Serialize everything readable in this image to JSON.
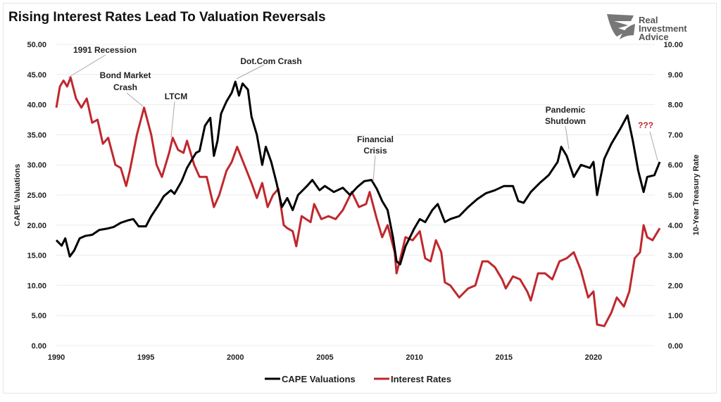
{
  "chart_data": {
    "type": "line",
    "title": "Rising Interest Rates Lead To Valuation Reversals",
    "ylabel": "CAPE Valuations",
    "y2label": "10-Year Treasury Rate",
    "xlim": [
      1990,
      2024
    ],
    "ylim": [
      0,
      50
    ],
    "y2lim": [
      0,
      10
    ],
    "x_ticks": [
      "1990",
      "1995",
      "2000",
      "2005",
      "2010",
      "2015",
      "2020"
    ],
    "y_ticks": [
      "0.00",
      "5.00",
      "10.00",
      "15.00",
      "20.00",
      "25.00",
      "30.00",
      "35.00",
      "40.00",
      "45.00",
      "50.00"
    ],
    "y2_ticks": [
      "0.00",
      "1.00",
      "2.00",
      "3.00",
      "4.00",
      "5.00",
      "6.00",
      "7.00",
      "8.00",
      "9.00",
      "10.00"
    ],
    "grid": true,
    "legend_placement": "bottom",
    "series": [
      {
        "name": "CAPE Valuations",
        "axis": "left",
        "color": "#000000",
        "points": [
          [
            1990,
            17.5
          ],
          [
            1990.3,
            16.6
          ],
          [
            1990.5,
            17.8
          ],
          [
            1990.75,
            14.8
          ],
          [
            1991,
            15.8
          ],
          [
            1991.3,
            17.8
          ],
          [
            1991.6,
            18.2
          ],
          [
            1992,
            18.4
          ],
          [
            1992.4,
            19.2
          ],
          [
            1992.8,
            19.4
          ],
          [
            1993.2,
            19.7
          ],
          [
            1993.6,
            20.4
          ],
          [
            1994,
            20.8
          ],
          [
            1994.3,
            21.0
          ],
          [
            1994.6,
            19.8
          ],
          [
            1995,
            19.8
          ],
          [
            1995.3,
            21.5
          ],
          [
            1995.7,
            23.3
          ],
          [
            1996,
            24.8
          ],
          [
            1996.4,
            25.8
          ],
          [
            1996.6,
            25.2
          ],
          [
            1997,
            27.3
          ],
          [
            1997.3,
            29.5
          ],
          [
            1997.5,
            30.5
          ],
          [
            1997.8,
            32
          ],
          [
            1998,
            32.3
          ],
          [
            1998.3,
            36.5
          ],
          [
            1998.6,
            37.8
          ],
          [
            1998.8,
            31.5
          ],
          [
            1999,
            34
          ],
          [
            1999.2,
            38.5
          ],
          [
            1999.5,
            40.5
          ],
          [
            1999.8,
            42
          ],
          [
            2000,
            43.8
          ],
          [
            2000.2,
            41.5
          ],
          [
            2000.4,
            43.5
          ],
          [
            2000.7,
            42.5
          ],
          [
            2000.9,
            38
          ],
          [
            2001.2,
            35
          ],
          [
            2001.5,
            30
          ],
          [
            2001.7,
            33
          ],
          [
            2002,
            30.5
          ],
          [
            2002.3,
            27
          ],
          [
            2002.6,
            23
          ],
          [
            2002.9,
            24.5
          ],
          [
            2003.2,
            22.5
          ],
          [
            2003.5,
            25
          ],
          [
            2004,
            26.5
          ],
          [
            2004.3,
            27.5
          ],
          [
            2004.7,
            25.8
          ],
          [
            2005,
            26.5
          ],
          [
            2005.5,
            25.5
          ],
          [
            2006,
            26.2
          ],
          [
            2006.4,
            25
          ],
          [
            2006.8,
            26.3
          ],
          [
            2007.2,
            27.3
          ],
          [
            2007.6,
            27.5
          ],
          [
            2007.9,
            26
          ],
          [
            2008.2,
            24
          ],
          [
            2008.5,
            22.5
          ],
          [
            2008.8,
            18
          ],
          [
            2009,
            14
          ],
          [
            2009.2,
            13.5
          ],
          [
            2009.5,
            16.5
          ],
          [
            2010,
            19.5
          ],
          [
            2010.3,
            21
          ],
          [
            2010.6,
            20.5
          ],
          [
            2011,
            22.5
          ],
          [
            2011.3,
            23.5
          ],
          [
            2011.7,
            20.5
          ],
          [
            2012,
            21
          ],
          [
            2012.5,
            21.5
          ],
          [
            2013,
            23
          ],
          [
            2013.5,
            24.3
          ],
          [
            2014,
            25.3
          ],
          [
            2014.5,
            25.8
          ],
          [
            2015,
            26.5
          ],
          [
            2015.5,
            26.5
          ],
          [
            2015.8,
            24
          ],
          [
            2016.1,
            23.7
          ],
          [
            2016.5,
            25.5
          ],
          [
            2017,
            27
          ],
          [
            2017.5,
            28.3
          ],
          [
            2018,
            30.5
          ],
          [
            2018.2,
            33
          ],
          [
            2018.5,
            31.5
          ],
          [
            2018.9,
            28
          ],
          [
            2019.3,
            30
          ],
          [
            2019.8,
            29.5
          ],
          [
            2020,
            30.5
          ],
          [
            2020.2,
            25
          ],
          [
            2020.6,
            31
          ],
          [
            2021,
            33.5
          ],
          [
            2021.5,
            36
          ],
          [
            2021.9,
            38.2
          ],
          [
            2022.2,
            34
          ],
          [
            2022.5,
            29
          ],
          [
            2022.8,
            25.5
          ],
          [
            2023,
            28
          ],
          [
            2023.4,
            28.3
          ],
          [
            2023.7,
            30.5
          ]
        ]
      },
      {
        "name": "Interest Rates",
        "axis": "right",
        "color": "#c0272d",
        "points": [
          [
            1990,
            7.9
          ],
          [
            1990.2,
            8.6
          ],
          [
            1990.4,
            8.8
          ],
          [
            1990.6,
            8.6
          ],
          [
            1990.8,
            8.9
          ],
          [
            1991.1,
            8.2
          ],
          [
            1991.4,
            7.9
          ],
          [
            1991.7,
            8.2
          ],
          [
            1992,
            7.4
          ],
          [
            1992.3,
            7.5
          ],
          [
            1992.6,
            6.7
          ],
          [
            1992.9,
            6.9
          ],
          [
            1993.3,
            6.0
          ],
          [
            1993.6,
            5.9
          ],
          [
            1993.9,
            5.3
          ],
          [
            1994.1,
            5.8
          ],
          [
            1994.5,
            7.0
          ],
          [
            1994.9,
            7.9
          ],
          [
            1995.3,
            7.0
          ],
          [
            1995.6,
            6.0
          ],
          [
            1995.9,
            5.6
          ],
          [
            1996.3,
            6.4
          ],
          [
            1996.5,
            6.9
          ],
          [
            1996.8,
            6.5
          ],
          [
            1997.1,
            6.4
          ],
          [
            1997.3,
            6.8
          ],
          [
            1997.7,
            6.0
          ],
          [
            1998,
            5.6
          ],
          [
            1998.4,
            5.6
          ],
          [
            1998.8,
            4.6
          ],
          [
            1999.1,
            5.0
          ],
          [
            1999.5,
            5.8
          ],
          [
            1999.8,
            6.1
          ],
          [
            2000.1,
            6.6
          ],
          [
            2000.5,
            6.0
          ],
          [
            2000.9,
            5.4
          ],
          [
            2001.2,
            4.9
          ],
          [
            2001.5,
            5.4
          ],
          [
            2001.8,
            4.6
          ],
          [
            2002.1,
            5.0
          ],
          [
            2002.4,
            5.2
          ],
          [
            2002.7,
            4.0
          ],
          [
            2002.9,
            3.9
          ],
          [
            2003.2,
            3.8
          ],
          [
            2003.4,
            3.3
          ],
          [
            2003.7,
            4.3
          ],
          [
            2004.2,
            4.1
          ],
          [
            2004.4,
            4.7
          ],
          [
            2004.8,
            4.2
          ],
          [
            2005.2,
            4.3
          ],
          [
            2005.6,
            4.2
          ],
          [
            2006,
            4.5
          ],
          [
            2006.5,
            5.1
          ],
          [
            2006.9,
            4.6
          ],
          [
            2007.3,
            4.7
          ],
          [
            2007.5,
            5.1
          ],
          [
            2007.9,
            4.2
          ],
          [
            2008.2,
            3.6
          ],
          [
            2008.5,
            4.0
          ],
          [
            2008.9,
            3.1
          ],
          [
            2009,
            2.4
          ],
          [
            2009.3,
            3.1
          ],
          [
            2009.5,
            3.6
          ],
          [
            2009.9,
            3.5
          ],
          [
            2010.3,
            3.8
          ],
          [
            2010.6,
            2.9
          ],
          [
            2010.9,
            2.8
          ],
          [
            2011.2,
            3.5
          ],
          [
            2011.5,
            3.1
          ],
          [
            2011.7,
            2.1
          ],
          [
            2012,
            2.0
          ],
          [
            2012.5,
            1.6
          ],
          [
            2013,
            1.9
          ],
          [
            2013.4,
            2.0
          ],
          [
            2013.8,
            2.8
          ],
          [
            2014.1,
            2.8
          ],
          [
            2014.5,
            2.6
          ],
          [
            2014.9,
            2.2
          ],
          [
            2015.1,
            1.9
          ],
          [
            2015.5,
            2.3
          ],
          [
            2015.9,
            2.2
          ],
          [
            2016.3,
            1.8
          ],
          [
            2016.5,
            1.5
          ],
          [
            2016.9,
            2.4
          ],
          [
            2017.3,
            2.4
          ],
          [
            2017.7,
            2.2
          ],
          [
            2018.1,
            2.8
          ],
          [
            2018.5,
            2.9
          ],
          [
            2018.9,
            3.1
          ],
          [
            2019.3,
            2.5
          ],
          [
            2019.7,
            1.6
          ],
          [
            2020,
            1.8
          ],
          [
            2020.2,
            0.7
          ],
          [
            2020.6,
            0.65
          ],
          [
            2021,
            1.1
          ],
          [
            2021.3,
            1.6
          ],
          [
            2021.7,
            1.3
          ],
          [
            2022,
            1.8
          ],
          [
            2022.3,
            2.9
          ],
          [
            2022.6,
            3.1
          ],
          [
            2022.8,
            4.0
          ],
          [
            2023,
            3.6
          ],
          [
            2023.3,
            3.5
          ],
          [
            2023.7,
            3.9
          ]
        ]
      }
    ],
    "annotations": [
      {
        "text": "1991 Recession"
      },
      {
        "text": "Bond Market"
      },
      {
        "text": "Crash"
      },
      {
        "text": "LTCM"
      },
      {
        "text": "Dot.Com Crash"
      },
      {
        "text": "Financial"
      },
      {
        "text": "Crisis"
      },
      {
        "text": "Pandemic"
      },
      {
        "text": "Shutdown"
      },
      {
        "text": "???",
        "color": "#c0272d"
      }
    ]
  },
  "logo": {
    "line1": "Real",
    "line2": "Investment",
    "line3": "Advice"
  }
}
